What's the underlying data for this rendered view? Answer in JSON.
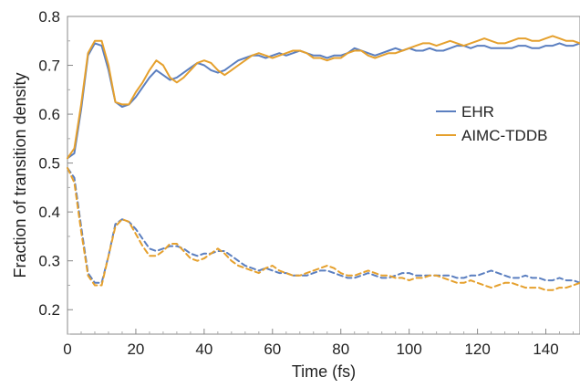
{
  "chart_data": {
    "type": "line",
    "xlabel": "Time (fs)",
    "ylabel": "Fraction of transition density",
    "xlim": [
      0,
      150
    ],
    "ylim": [
      0.15,
      0.8
    ],
    "x_ticks": [
      0,
      20,
      40,
      60,
      80,
      100,
      120,
      140
    ],
    "y_ticks": [
      0.2,
      0.3,
      0.4,
      0.5,
      0.6,
      0.7,
      0.8
    ],
    "x_tick_labels": [
      "0",
      "20",
      "40",
      "60",
      "80",
      "100",
      "120",
      "140"
    ],
    "y_tick_labels": [
      "0.2",
      "0.3",
      "0.4",
      "0.5",
      "0.6",
      "0.7",
      "0.8"
    ],
    "grid": false,
    "legend_position": "right",
    "legend": [
      {
        "label": "EHR",
        "color": "#5b7fc0"
      },
      {
        "label": "AIMC-TDDB",
        "color": "#e5a02d"
      }
    ],
    "x": [
      0,
      2,
      4,
      6,
      8,
      10,
      12,
      14,
      16,
      18,
      20,
      22,
      24,
      26,
      28,
      30,
      32,
      34,
      36,
      38,
      40,
      42,
      44,
      46,
      48,
      50,
      52,
      54,
      56,
      58,
      60,
      62,
      64,
      66,
      68,
      70,
      72,
      74,
      76,
      78,
      80,
      82,
      84,
      86,
      88,
      90,
      92,
      94,
      96,
      98,
      100,
      102,
      104,
      106,
      108,
      110,
      112,
      114,
      116,
      118,
      120,
      122,
      124,
      126,
      128,
      130,
      132,
      134,
      136,
      138,
      140,
      142,
      144,
      146,
      148,
      150
    ],
    "series": [
      {
        "name": "EHR",
        "group": "upper",
        "color": "#5b7fc0",
        "dash": "solid",
        "values": [
          0.51,
          0.52,
          0.61,
          0.72,
          0.745,
          0.74,
          0.69,
          0.625,
          0.615,
          0.62,
          0.635,
          0.655,
          0.675,
          0.69,
          0.68,
          0.67,
          0.675,
          0.685,
          0.695,
          0.705,
          0.7,
          0.69,
          0.685,
          0.69,
          0.7,
          0.71,
          0.715,
          0.72,
          0.72,
          0.715,
          0.72,
          0.725,
          0.72,
          0.725,
          0.73,
          0.725,
          0.72,
          0.72,
          0.715,
          0.72,
          0.72,
          0.725,
          0.735,
          0.73,
          0.725,
          0.72,
          0.725,
          0.73,
          0.735,
          0.73,
          0.735,
          0.73,
          0.73,
          0.735,
          0.73,
          0.73,
          0.735,
          0.74,
          0.74,
          0.735,
          0.74,
          0.74,
          0.735,
          0.735,
          0.735,
          0.735,
          0.74,
          0.74,
          0.735,
          0.735,
          0.74,
          0.74,
          0.745,
          0.74,
          0.74,
          0.745
        ]
      },
      {
        "name": "AIMC-TDDB",
        "group": "upper",
        "color": "#e5a02d",
        "dash": "solid",
        "values": [
          0.51,
          0.53,
          0.62,
          0.725,
          0.75,
          0.75,
          0.7,
          0.625,
          0.62,
          0.62,
          0.645,
          0.665,
          0.69,
          0.71,
          0.7,
          0.675,
          0.665,
          0.675,
          0.69,
          0.705,
          0.71,
          0.705,
          0.69,
          0.68,
          0.69,
          0.7,
          0.71,
          0.72,
          0.725,
          0.72,
          0.715,
          0.72,
          0.725,
          0.73,
          0.73,
          0.725,
          0.715,
          0.715,
          0.71,
          0.715,
          0.715,
          0.725,
          0.73,
          0.73,
          0.72,
          0.715,
          0.72,
          0.725,
          0.725,
          0.73,
          0.735,
          0.74,
          0.745,
          0.745,
          0.74,
          0.745,
          0.75,
          0.745,
          0.74,
          0.745,
          0.75,
          0.755,
          0.75,
          0.745,
          0.745,
          0.75,
          0.755,
          0.755,
          0.75,
          0.75,
          0.755,
          0.76,
          0.755,
          0.75,
          0.75,
          0.745
        ]
      },
      {
        "name": "EHR",
        "group": "lower",
        "color": "#5b7fc0",
        "dash": "dashed",
        "values": [
          0.49,
          0.47,
          0.37,
          0.275,
          0.255,
          0.255,
          0.31,
          0.375,
          0.385,
          0.38,
          0.365,
          0.345,
          0.325,
          0.32,
          0.325,
          0.33,
          0.33,
          0.325,
          0.315,
          0.31,
          0.315,
          0.315,
          0.32,
          0.32,
          0.31,
          0.3,
          0.29,
          0.285,
          0.28,
          0.285,
          0.28,
          0.275,
          0.275,
          0.27,
          0.27,
          0.27,
          0.275,
          0.28,
          0.28,
          0.275,
          0.27,
          0.265,
          0.265,
          0.27,
          0.275,
          0.27,
          0.265,
          0.265,
          0.27,
          0.275,
          0.275,
          0.27,
          0.27,
          0.27,
          0.27,
          0.27,
          0.27,
          0.265,
          0.265,
          0.27,
          0.27,
          0.275,
          0.28,
          0.275,
          0.27,
          0.265,
          0.265,
          0.27,
          0.265,
          0.265,
          0.26,
          0.26,
          0.265,
          0.26,
          0.26,
          0.255
        ]
      },
      {
        "name": "AIMC-TDDB",
        "group": "lower",
        "color": "#e5a02d",
        "dash": "dashed",
        "values": [
          0.49,
          0.46,
          0.36,
          0.27,
          0.25,
          0.25,
          0.31,
          0.37,
          0.385,
          0.38,
          0.355,
          0.33,
          0.31,
          0.31,
          0.32,
          0.335,
          0.335,
          0.32,
          0.305,
          0.3,
          0.305,
          0.315,
          0.325,
          0.315,
          0.3,
          0.29,
          0.285,
          0.28,
          0.275,
          0.285,
          0.29,
          0.28,
          0.275,
          0.27,
          0.27,
          0.275,
          0.28,
          0.285,
          0.29,
          0.285,
          0.275,
          0.27,
          0.27,
          0.275,
          0.28,
          0.275,
          0.27,
          0.27,
          0.265,
          0.265,
          0.26,
          0.265,
          0.265,
          0.27,
          0.27,
          0.265,
          0.26,
          0.255,
          0.255,
          0.26,
          0.255,
          0.25,
          0.245,
          0.25,
          0.255,
          0.255,
          0.25,
          0.245,
          0.245,
          0.245,
          0.24,
          0.24,
          0.245,
          0.245,
          0.25,
          0.255
        ]
      }
    ]
  }
}
